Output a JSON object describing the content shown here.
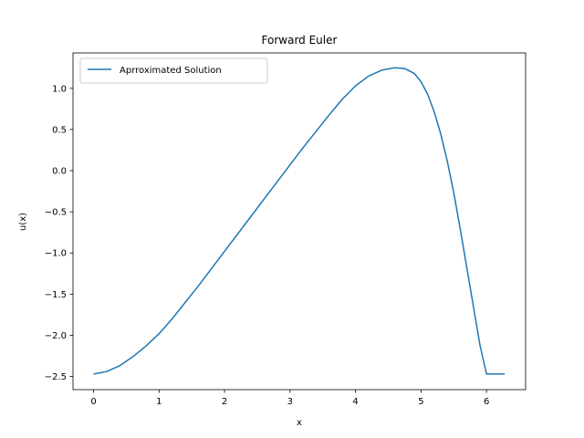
{
  "chart_data": {
    "type": "line",
    "title": "Forward Euler",
    "xlabel": "x",
    "ylabel": "u(x)",
    "xlim": [
      -0.314,
      6.597
    ],
    "ylim": [
      -2.66,
      1.43
    ],
    "xticks": [
      0,
      1,
      2,
      3,
      4,
      5,
      6
    ],
    "xtick_labels": [
      "0",
      "1",
      "2",
      "3",
      "4",
      "5",
      "6"
    ],
    "yticks": [
      -2.5,
      -2.0,
      -1.5,
      -1.0,
      -0.5,
      0.0,
      0.5,
      1.0
    ],
    "ytick_labels": [
      "−2.5",
      "−2.0",
      "−1.5",
      "−1.0",
      "−0.5",
      "0.0",
      "0.5",
      "1.0"
    ],
    "grid": false,
    "legend_position": "top-left",
    "series": [
      {
        "name": "Aprroximated Solution",
        "color": "#1f77b4",
        "x": [
          0,
          0.2,
          0.4,
          0.6,
          0.8,
          1.0,
          1.2,
          1.4,
          1.6,
          1.8,
          2.0,
          2.2,
          2.4,
          2.6,
          2.8,
          3.0,
          3.2,
          3.4,
          3.6,
          3.8,
          4.0,
          4.2,
          4.4,
          4.6,
          4.75,
          4.9,
          5.0,
          5.1,
          5.2,
          5.3,
          5.4,
          5.5,
          5.6,
          5.7,
          5.8,
          5.9,
          6.0,
          6.1,
          6.2,
          6.28
        ],
        "y": [
          -2.47,
          -2.44,
          -2.37,
          -2.26,
          -2.13,
          -1.98,
          -1.8,
          -1.6,
          -1.4,
          -1.19,
          -0.98,
          -0.77,
          -0.56,
          -0.35,
          -0.14,
          0.07,
          0.28,
          0.48,
          0.68,
          0.87,
          1.03,
          1.15,
          1.22,
          1.25,
          1.24,
          1.18,
          1.08,
          0.93,
          0.72,
          0.45,
          0.12,
          -0.27,
          -0.71,
          -1.18,
          -1.65,
          -2.12,
          -2.47,
          -2.47,
          -2.47,
          -2.47
        ]
      }
    ]
  }
}
